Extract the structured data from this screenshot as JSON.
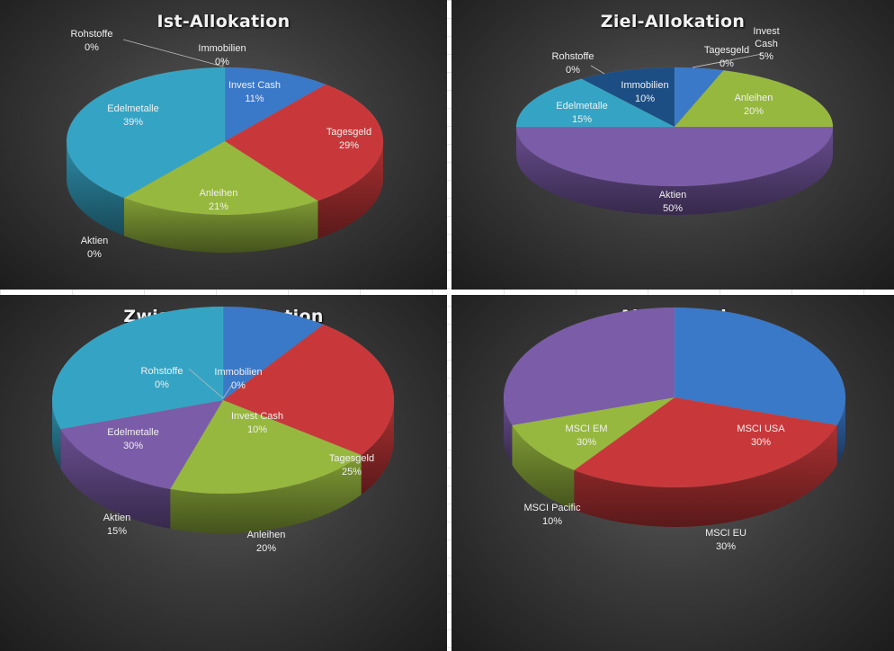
{
  "chart_data": [
    {
      "type": "pie",
      "title": "Ist-Allokation",
      "categories": [
        "Invest Cash",
        "Tagesgeld",
        "Anleihen",
        "Aktien",
        "Edelmetalle",
        "Rohstoffe",
        "Immobilien"
      ],
      "values": [
        11,
        29,
        21,
        0,
        39,
        0,
        0
      ],
      "labels": [
        "11%",
        "29%",
        "21%",
        "0%",
        "39%",
        "0%",
        "0%"
      ],
      "colors": [
        "#3a78c8",
        "#c8383a",
        "#96b83e",
        "#7b5ca8",
        "#35a4c4",
        "#2b7a9a",
        "#1c4e84"
      ]
    },
    {
      "type": "pie",
      "title": "Ziel-Allokation",
      "categories": [
        "Invest Cash",
        "Tagesgeld",
        "Anleihen",
        "Aktien",
        "Edelmetalle",
        "Rohstoffe",
        "Immobilien"
      ],
      "values": [
        5,
        0,
        20,
        50,
        15,
        0,
        10
      ],
      "labels": [
        "5%",
        "0%",
        "20%",
        "50%",
        "15%",
        "0%",
        "10%"
      ],
      "colors": [
        "#3a78c8",
        "#c8383a",
        "#96b83e",
        "#7b5ca8",
        "#35a4c4",
        "#2b7a9a",
        "#1c4e84"
      ]
    },
    {
      "type": "pie",
      "title": "Zwischen-Allokation",
      "categories": [
        "Invest Cash",
        "Tagesgeld",
        "Anleihen",
        "Aktien",
        "Edelmetalle",
        "Rohstoffe",
        "Immobilien"
      ],
      "values": [
        10,
        25,
        20,
        15,
        30,
        0,
        0
      ],
      "labels": [
        "10%",
        "25%",
        "20%",
        "15%",
        "30%",
        "0%",
        "0%"
      ],
      "colors": [
        "#3a78c8",
        "#c8383a",
        "#96b83e",
        "#7b5ca8",
        "#35a4c4",
        "#2b7a9a",
        "#1c4e84"
      ]
    },
    {
      "type": "pie",
      "title": "Aktien-Ziel",
      "categories": [
        "MSCI USA",
        "MSCI EU",
        "MSCI Pacific",
        "MSCI EM"
      ],
      "values": [
        30,
        30,
        10,
        30
      ],
      "labels": [
        "30%",
        "30%",
        "10%",
        "30%"
      ],
      "colors": [
        "#3a78c8",
        "#c8383a",
        "#96b83e",
        "#7b5ca8"
      ]
    }
  ]
}
